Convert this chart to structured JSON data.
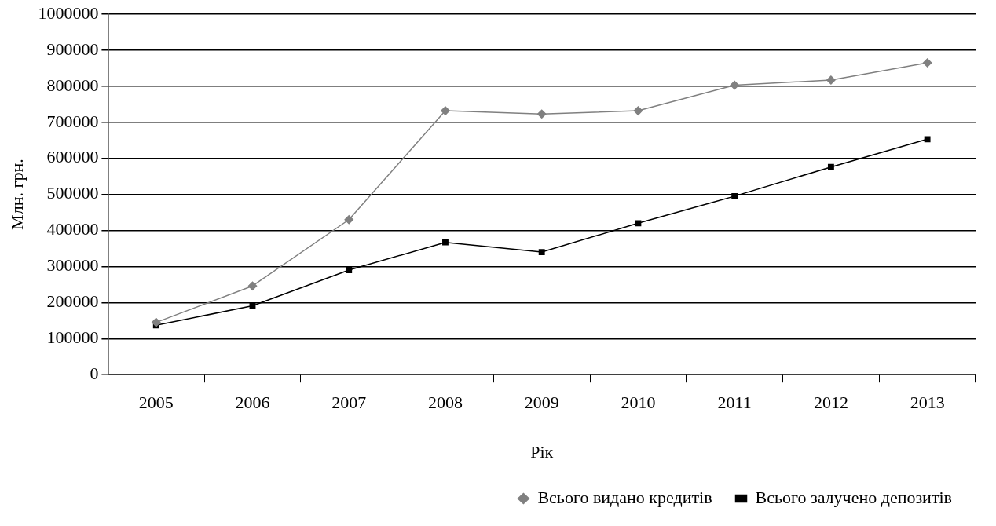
{
  "chart_data": {
    "type": "line",
    "xlabel": "Рік",
    "ylabel": "Млн. грн.",
    "categories": [
      "2005",
      "2006",
      "2007",
      "2008",
      "2009",
      "2010",
      "2011",
      "2012",
      "2013"
    ],
    "series": [
      {
        "name": "Всього видано кредитів",
        "color": "#808080",
        "marker": "diamond",
        "values": [
          145000,
          246000,
          430000,
          732000,
          723000,
          732000,
          803000,
          817000,
          865000
        ]
      },
      {
        "name": "Всього залучено депозитів",
        "color": "#000000",
        "marker": "square",
        "values": [
          137000,
          191000,
          290000,
          367000,
          340000,
          420000,
          495000,
          576000,
          653000
        ]
      }
    ],
    "ylim": [
      0,
      1000000
    ],
    "yticks": [
      0,
      100000,
      200000,
      300000,
      400000,
      500000,
      600000,
      700000,
      800000,
      900000,
      1000000
    ],
    "grid": "y",
    "legend": "bottom",
    "line_style": "solid"
  }
}
